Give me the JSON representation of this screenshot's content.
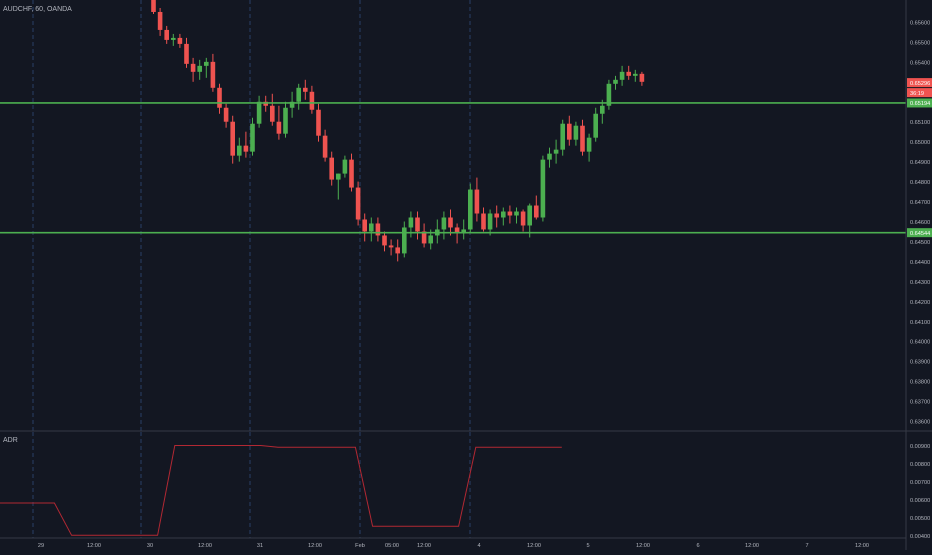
{
  "header": {
    "symbol_label": "AUDCHF, 60, OANDA"
  },
  "indicator": {
    "label": "ADR"
  },
  "colors": {
    "background": "#131722",
    "grid_vertical": "#2a3f66",
    "axis_border": "#363a45",
    "axis_text": "#b2b5be",
    "bull": "#26a69a",
    "bull_body": "#4caf50",
    "bear": "#ef5350",
    "hline": "#4caf50",
    "adr_line": "#b22833",
    "price_tag_red": "#ef5350",
    "price_tag_green": "#4caf50"
  },
  "chart_data": [
    {
      "type": "candlestick",
      "title": "AUDCHF, 60, OANDA",
      "ylim": [
        0.6355,
        0.6571
      ],
      "y_ticks": [
        "0.65600",
        "0.65500",
        "0.65400",
        "0.65300",
        "0.65200",
        "0.65100",
        "0.65000",
        "0.64900",
        "0.64800",
        "0.64700",
        "0.64600",
        "0.64500",
        "0.64400",
        "0.64300",
        "0.64200",
        "0.64100",
        "0.64000",
        "0.63900",
        "0.63800",
        "0.63700",
        "0.63600"
      ],
      "x_ticks": [
        "29",
        "12:00",
        "30",
        "12:00",
        "31",
        "12:00",
        "Feb",
        "05:00",
        "12:00",
        "4",
        "12:00",
        "5",
        "12:00",
        "6",
        "12:00",
        "7",
        "12:00"
      ],
      "horizontal_levels": [
        0.65194,
        0.64544
      ],
      "price_labels": [
        {
          "text": "0.65296",
          "color": "red"
        },
        {
          "text": "36:19",
          "color": "red"
        },
        {
          "text": "0.65194",
          "color": "green"
        },
        {
          "text": "0.64544",
          "color": "green"
        }
      ],
      "candles": [
        [
          0.6574,
          0.6576,
          0.6564,
          0.6565
        ],
        [
          0.6565,
          0.6567,
          0.6553,
          0.6556
        ],
        [
          0.6556,
          0.6558,
          0.6549,
          0.6551
        ],
        [
          0.6551,
          0.6554,
          0.6548,
          0.6552
        ],
        [
          0.6552,
          0.6554,
          0.6547,
          0.6549
        ],
        [
          0.6549,
          0.6552,
          0.6537,
          0.6539
        ],
        [
          0.6539,
          0.6542,
          0.653,
          0.6535
        ],
        [
          0.6535,
          0.6541,
          0.6531,
          0.6538
        ],
        [
          0.6538,
          0.6542,
          0.6532,
          0.654
        ],
        [
          0.654,
          0.6544,
          0.6525,
          0.6527
        ],
        [
          0.6527,
          0.6529,
          0.6514,
          0.6517
        ],
        [
          0.6517,
          0.6519,
          0.6507,
          0.651
        ],
        [
          0.651,
          0.6513,
          0.6489,
          0.6493
        ],
        [
          0.6493,
          0.6502,
          0.649,
          0.6498
        ],
        [
          0.6498,
          0.6505,
          0.6492,
          0.6495
        ],
        [
          0.6495,
          0.6512,
          0.6493,
          0.6509
        ],
        [
          0.6509,
          0.6523,
          0.6507,
          0.652
        ],
        [
          0.652,
          0.6523,
          0.6515,
          0.6518
        ],
        [
          0.6518,
          0.6524,
          0.6508,
          0.651
        ],
        [
          0.651,
          0.6518,
          0.6501,
          0.6504
        ],
        [
          0.6504,
          0.652,
          0.6502,
          0.6517
        ],
        [
          0.6517,
          0.6525,
          0.6512,
          0.652
        ],
        [
          0.652,
          0.6529,
          0.6516,
          0.6527
        ],
        [
          0.6527,
          0.6531,
          0.6521,
          0.6525
        ],
        [
          0.6525,
          0.6528,
          0.6514,
          0.6516
        ],
        [
          0.6516,
          0.6519,
          0.65,
          0.6503
        ],
        [
          0.6503,
          0.6506,
          0.649,
          0.6492
        ],
        [
          0.6492,
          0.6495,
          0.6478,
          0.6481
        ],
        [
          0.6481,
          0.6484,
          0.6471,
          0.6484
        ],
        [
          0.6484,
          0.6493,
          0.6482,
          0.6491
        ],
        [
          0.6491,
          0.6494,
          0.6475,
          0.6477
        ],
        [
          0.6477,
          0.648,
          0.6458,
          0.6461
        ],
        [
          0.6461,
          0.6464,
          0.645,
          0.6455
        ],
        [
          0.6455,
          0.6462,
          0.645,
          0.6459
        ],
        [
          0.6459,
          0.6462,
          0.645,
          0.6453
        ],
        [
          0.6453,
          0.6455,
          0.6445,
          0.6448
        ],
        [
          0.6448,
          0.6451,
          0.6443,
          0.6447
        ],
        [
          0.6447,
          0.6451,
          0.644,
          0.6444
        ],
        [
          0.6444,
          0.646,
          0.6442,
          0.6457
        ],
        [
          0.6457,
          0.6465,
          0.6452,
          0.6462
        ],
        [
          0.6462,
          0.6465,
          0.6451,
          0.6455
        ],
        [
          0.6455,
          0.6459,
          0.6447,
          0.6449
        ],
        [
          0.6449,
          0.6456,
          0.6446,
          0.6453
        ],
        [
          0.6453,
          0.6461,
          0.6449,
          0.6456
        ],
        [
          0.6456,
          0.6465,
          0.6451,
          0.6462
        ],
        [
          0.6462,
          0.6466,
          0.6453,
          0.6457
        ],
        [
          0.6457,
          0.6459,
          0.6449,
          0.6454
        ],
        [
          0.6454,
          0.6461,
          0.6451,
          0.6456
        ],
        [
          0.6456,
          0.6479,
          0.6454,
          0.6476
        ],
        [
          0.6476,
          0.6482,
          0.646,
          0.6464
        ],
        [
          0.6464,
          0.6467,
          0.6455,
          0.6456
        ],
        [
          0.6456,
          0.6466,
          0.6453,
          0.6464
        ],
        [
          0.6464,
          0.6468,
          0.6457,
          0.6462
        ],
        [
          0.6462,
          0.6467,
          0.6458,
          0.6465
        ],
        [
          0.6465,
          0.6468,
          0.6459,
          0.6463
        ],
        [
          0.6463,
          0.6467,
          0.6459,
          0.6465
        ],
        [
          0.6465,
          0.6466,
          0.6455,
          0.6458
        ],
        [
          0.6458,
          0.6469,
          0.6452,
          0.6468
        ],
        [
          0.6468,
          0.6473,
          0.6461,
          0.6462
        ],
        [
          0.6462,
          0.6493,
          0.646,
          0.6491
        ],
        [
          0.6491,
          0.6497,
          0.6487,
          0.6494
        ],
        [
          0.6494,
          0.6501,
          0.6489,
          0.6496
        ],
        [
          0.6496,
          0.6511,
          0.6493,
          0.6509
        ],
        [
          0.6509,
          0.6513,
          0.6498,
          0.6501
        ],
        [
          0.6501,
          0.651,
          0.6498,
          0.6508
        ],
        [
          0.6508,
          0.6511,
          0.6493,
          0.6495
        ],
        [
          0.6495,
          0.6504,
          0.649,
          0.6502
        ],
        [
          0.6502,
          0.6517,
          0.65,
          0.6514
        ],
        [
          0.6514,
          0.6521,
          0.6509,
          0.6518
        ],
        [
          0.6518,
          0.6531,
          0.6516,
          0.6529
        ],
        [
          0.6529,
          0.6533,
          0.6526,
          0.6531
        ],
        [
          0.6531,
          0.6538,
          0.6528,
          0.6535
        ],
        [
          0.6535,
          0.6538,
          0.6531,
          0.6533
        ],
        [
          0.6533,
          0.6536,
          0.653,
          0.6534
        ],
        [
          0.6534,
          0.6535,
          0.6528,
          0.653
        ]
      ]
    },
    {
      "type": "line",
      "title": "ADR",
      "ylim": [
        0.00385,
        0.00975
      ],
      "y_ticks": [
        "0.00900",
        "0.00800",
        "0.00700",
        "0.00600",
        "0.00500",
        "0.00400"
      ],
      "series": [
        {
          "values": [
            [
              0,
              0.0058
            ],
            [
              4,
              0.0058
            ],
            [
              6,
              0.004
            ],
            [
              16,
              0.004
            ],
            [
              18,
              0.009
            ],
            [
              28,
              0.009
            ],
            [
              30,
              0.0089
            ],
            [
              39,
              0.0089
            ],
            [
              41,
              0.0045
            ],
            [
              51,
              0.0045
            ],
            [
              53,
              0.0089
            ],
            [
              63,
              0.0089
            ]
          ]
        }
      ]
    }
  ]
}
